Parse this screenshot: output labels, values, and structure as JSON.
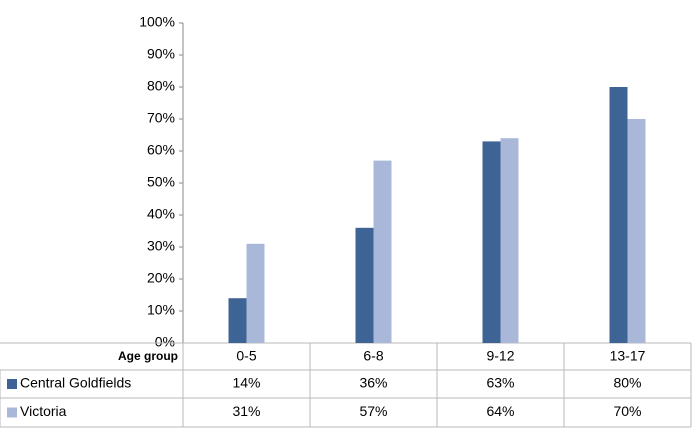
{
  "chart_data": {
    "type": "bar",
    "x_label": "Age group",
    "categories": [
      "0-5",
      "6-8",
      "9-12",
      "13-17"
    ],
    "series": [
      {
        "name": "Central Goldfields",
        "color": "#3e6496",
        "values": [
          14,
          36,
          63,
          80
        ],
        "value_labels": [
          "14%",
          "36%",
          "63%",
          "80%"
        ]
      },
      {
        "name": "Victoria",
        "color": "#a9b8d8",
        "values": [
          31,
          57,
          64,
          70
        ],
        "value_labels": [
          "31%",
          "57%",
          "64%",
          "70%"
        ]
      }
    ],
    "ylim": [
      0,
      100
    ],
    "yticks": [
      {
        "value": 0,
        "label": "0%"
      },
      {
        "value": 10,
        "label": "10%"
      },
      {
        "value": 20,
        "label": "20%"
      },
      {
        "value": 30,
        "label": "30%"
      },
      {
        "value": 40,
        "label": "40%"
      },
      {
        "value": 50,
        "label": "50%"
      },
      {
        "value": 60,
        "label": "60%"
      },
      {
        "value": 70,
        "label": "70%"
      },
      {
        "value": 80,
        "label": "80%"
      },
      {
        "value": 90,
        "label": "90%"
      },
      {
        "value": 100,
        "label": "100%"
      }
    ],
    "grid": false
  }
}
